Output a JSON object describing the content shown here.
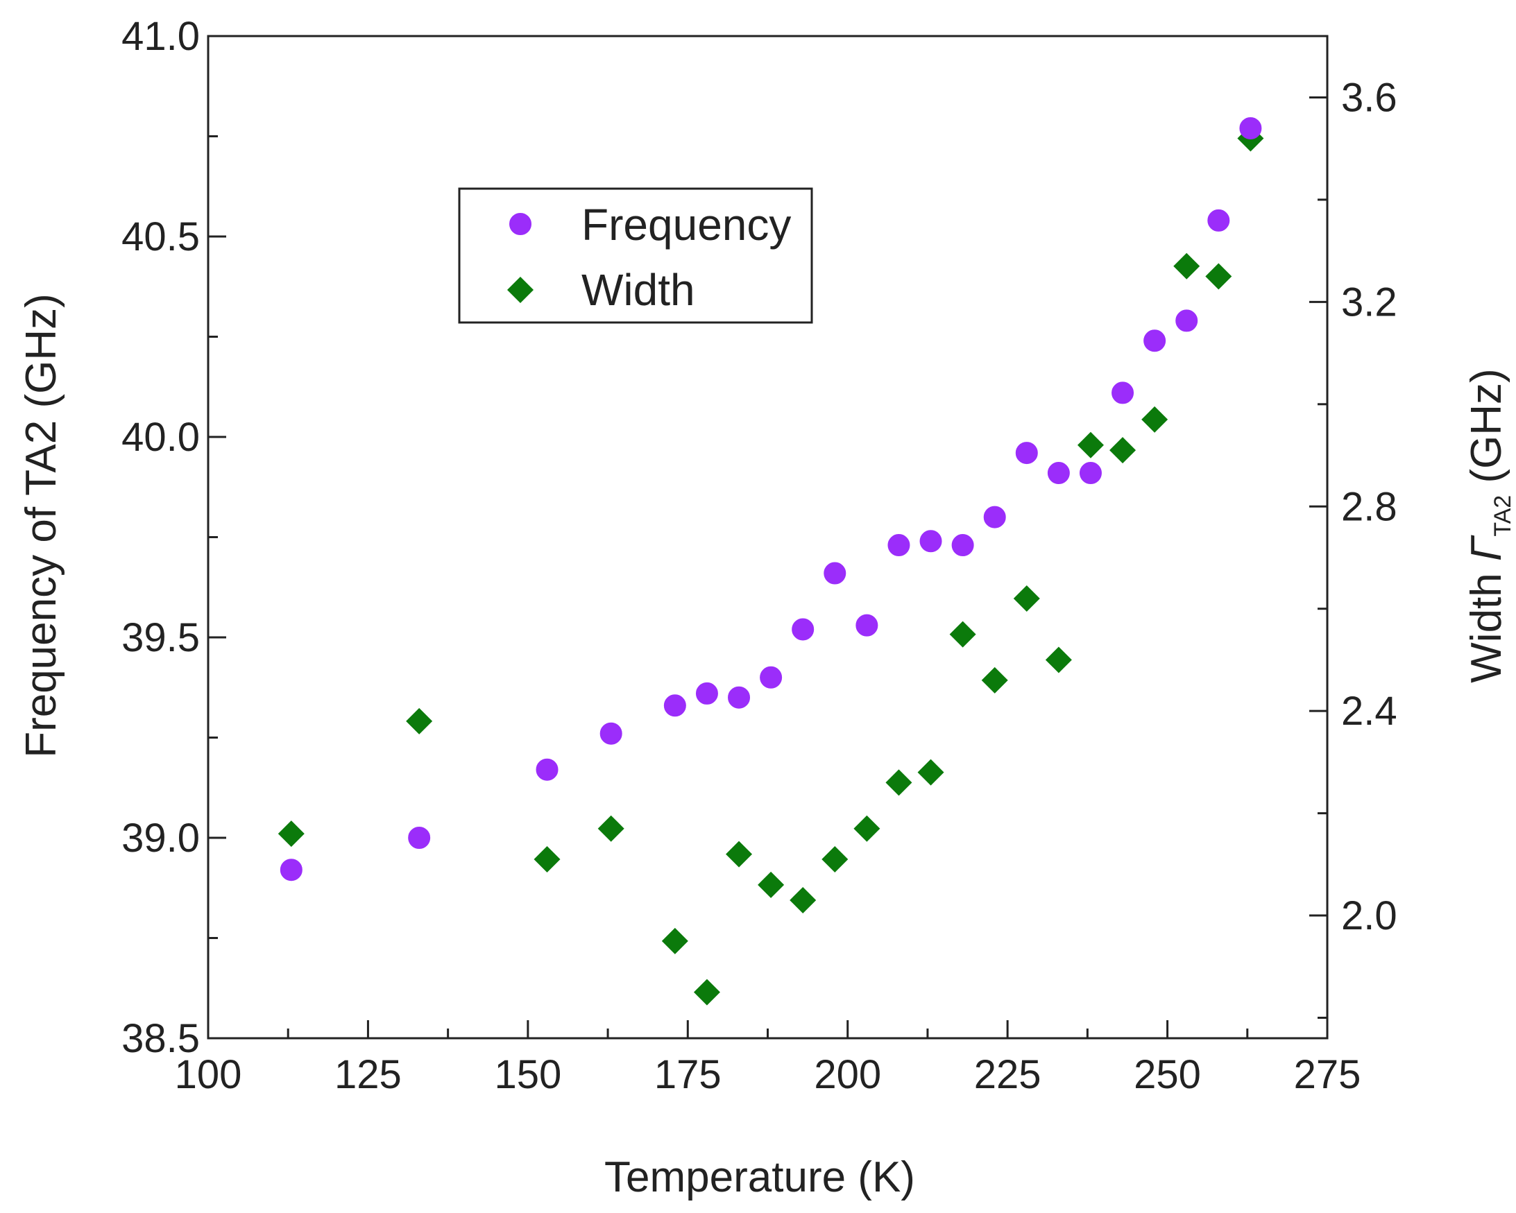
{
  "chart_data": {
    "type": "scatter",
    "xlabel": "Temperature (K)",
    "ylabel_left": "Frequency of TA2 (GHz)",
    "ylabel_right": {
      "prefix": "Width ",
      "symbol": "Γ",
      "subscript": "TA2",
      "suffix": " (GHz)"
    },
    "xlim": [
      100,
      275
    ],
    "ylim_left": [
      38.5,
      41.0
    ],
    "ylim_right": [
      1.76,
      3.72
    ],
    "x_ticks": [
      "100",
      "125",
      "150",
      "175",
      "200",
      "225",
      "250",
      "275"
    ],
    "y_left_ticks": [
      "38.5",
      "39.0",
      "39.5",
      "40.0",
      "40.5",
      "41.0"
    ],
    "y_right_ticks": [
      "2.0",
      "2.4",
      "2.8",
      "3.2",
      "3.6"
    ],
    "legend_position": "upper-left-center",
    "colors": {
      "frequency": "#9b2dfa",
      "width": "#0b7a0b",
      "axis": "#222222"
    },
    "series": [
      {
        "name": "Frequency",
        "axis": "left",
        "marker": "circle",
        "points": [
          [
            113,
            38.92
          ],
          [
            133,
            39.0
          ],
          [
            153,
            39.17
          ],
          [
            163,
            39.26
          ],
          [
            173,
            39.33
          ],
          [
            178,
            39.36
          ],
          [
            183,
            39.35
          ],
          [
            188,
            39.4
          ],
          [
            193,
            39.52
          ],
          [
            198,
            39.66
          ],
          [
            203,
            39.53
          ],
          [
            208,
            39.73
          ],
          [
            213,
            39.74
          ],
          [
            218,
            39.73
          ],
          [
            223,
            39.8
          ],
          [
            228,
            39.96
          ],
          [
            233,
            39.91
          ],
          [
            238,
            39.91
          ],
          [
            243,
            40.11
          ],
          [
            248,
            40.24
          ],
          [
            253,
            40.29
          ],
          [
            258,
            40.54
          ],
          [
            263,
            40.77
          ]
        ]
      },
      {
        "name": "Width",
        "axis": "right",
        "marker": "diamond",
        "points": [
          [
            113,
            2.16
          ],
          [
            133,
            2.38
          ],
          [
            153,
            2.11
          ],
          [
            163,
            2.17
          ],
          [
            173,
            1.95
          ],
          [
            178,
            1.85
          ],
          [
            183,
            2.12
          ],
          [
            188,
            2.06
          ],
          [
            193,
            2.03
          ],
          [
            198,
            2.11
          ],
          [
            203,
            2.17
          ],
          [
            208,
            2.26
          ],
          [
            213,
            2.28
          ],
          [
            218,
            2.55
          ],
          [
            223,
            2.46
          ],
          [
            228,
            2.62
          ],
          [
            233,
            2.5
          ],
          [
            238,
            2.92
          ],
          [
            243,
            2.91
          ],
          [
            248,
            2.97
          ],
          [
            253,
            3.27
          ],
          [
            258,
            3.25
          ],
          [
            263,
            3.52
          ]
        ]
      }
    ]
  }
}
